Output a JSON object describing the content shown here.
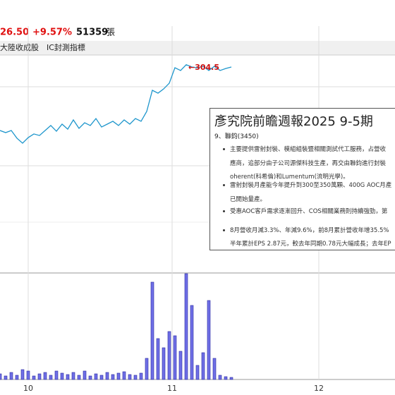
{
  "header": {
    "price": "26.50",
    "change": "+9.57%",
    "volume": "51359",
    "unit": "張",
    "tags": [
      "大陸收成股",
      "IC封測指標"
    ]
  },
  "chart_data": {
    "type": "line",
    "peak_label": "←304.5",
    "x": [
      0,
      2,
      4,
      6,
      8,
      10,
      12,
      14,
      16,
      18,
      20,
      22,
      24,
      26,
      28,
      30,
      32,
      34,
      36,
      38,
      40,
      42,
      44,
      46,
      48,
      50,
      52,
      54,
      56,
      58,
      60,
      62,
      64,
      66,
      68,
      70,
      72,
      74,
      76,
      78,
      80,
      82
    ],
    "xlim": [
      0,
      140
    ],
    "xticks": [
      10,
      {
        "value": 61,
        "label": "11"
      },
      {
        "value": 113,
        "label": "12"
      }
    ],
    "ylim": [
      170,
      310
    ],
    "y2lim": [
      0,
      150
    ],
    "series": [
      {
        "type": "line",
        "color": "#1e96cc",
        "values": [
          261,
          259.6,
          261,
          255.9,
          252.6,
          256.3,
          258.7,
          257.7,
          261,
          264.3,
          260.5,
          265.2,
          261.9,
          268,
          262.4,
          266.1,
          264.3,
          268.9,
          263.3,
          265.2,
          267.1,
          264.3,
          268,
          265.2,
          268.9,
          267.1,
          273.6,
          287.6,
          285.7,
          288.5,
          292.3,
          302.5,
          300.7,
          304.5,
          303,
          302.5,
          303.5,
          300.7,
          303.5,
          300.7,
          302,
          303
        ]
      },
      {
        "type": "bar",
        "axis": "y2",
        "color": "#6f6fe6",
        "values": [
          8,
          5,
          10,
          6,
          14,
          12,
          5,
          8,
          10,
          6,
          12,
          9,
          7,
          10,
          6,
          12,
          5,
          8,
          6,
          10,
          7,
          9,
          11,
          7,
          6,
          9,
          30,
          138,
          58,
          45,
          68,
          62,
          40,
          150,
          105,
          20,
          38,
          112,
          30,
          6,
          4,
          3
        ]
      }
    ]
  },
  "report": {
    "title": "彥究院前瞻週報2025 9-5期",
    "item": "9、聯鈞(3450)",
    "bullets": [
      [
        "主要提供雷射封裝、模組組裝暨相關測試代工服務，占營收",
        "應商，追部分由子公司源傑科技生產，再交由聯鈞進行封裝",
        "oherent(科希倫)和Lumentum(流明光學)。"
      ],
      [
        "雷射封裝月產能今年提升到300至350萬顆、400G AOC月產",
        "已開始量產。"
      ],
      [
        "受惠AOC客戶需求逐漸回升、COS相關業務則持續強勁，第"
      ],
      [
        "8月營收月減3.3%、年減9.6%，前8月累計營收年增35.5%",
        "半年累計EPS 2.87元，較去年同期0.78元大幅成長；去年EP"
      ]
    ]
  }
}
